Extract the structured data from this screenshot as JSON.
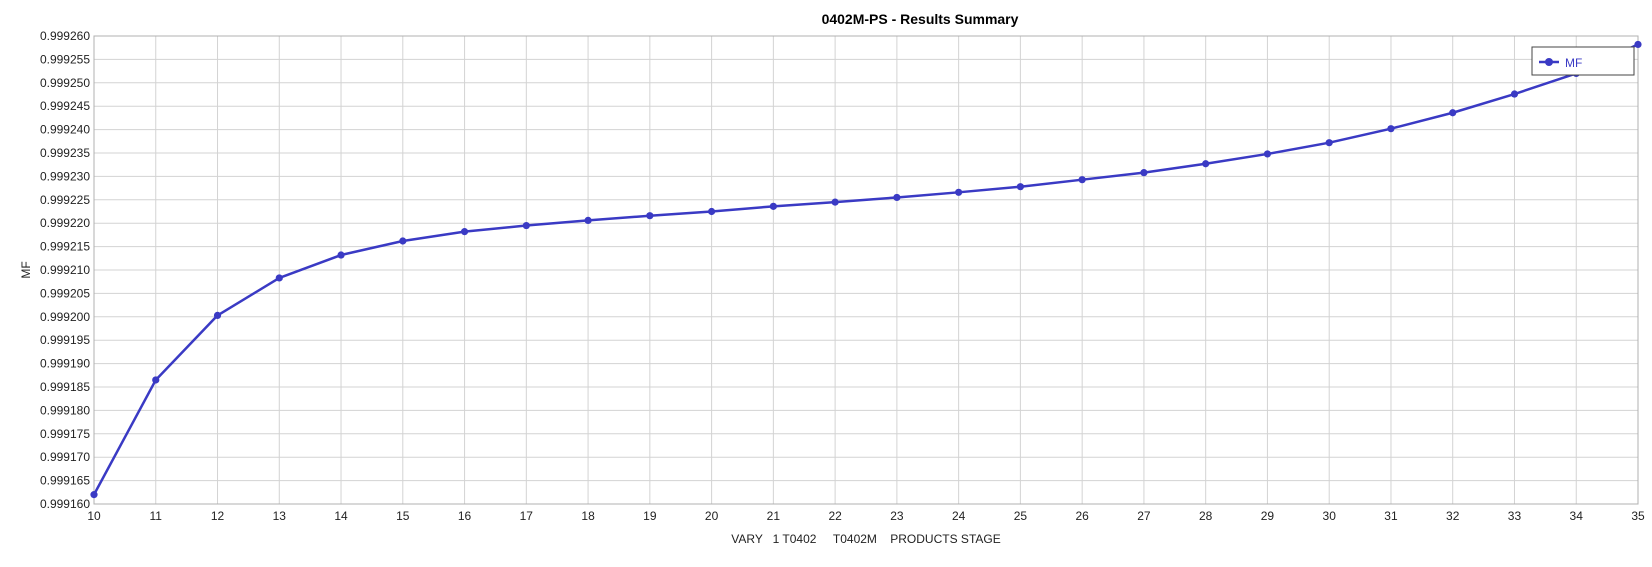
{
  "chart_data": {
    "type": "line",
    "title": "0402M-PS - Results Summary",
    "xlabel": "VARY   1 T0402     T0402M    PRODUCTS STAGE",
    "ylabel": "MF",
    "xlim": [
      10,
      35
    ],
    "ylim": [
      0.99916,
      0.99926
    ],
    "x_ticks": [
      "10",
      "11",
      "12",
      "13",
      "14",
      "15",
      "16",
      "17",
      "18",
      "19",
      "20",
      "21",
      "22",
      "23",
      "24",
      "25",
      "26",
      "27",
      "28",
      "29",
      "30",
      "31",
      "32",
      "33",
      "34",
      "35"
    ],
    "y_ticks": [
      "0.999160",
      "0.999165",
      "0.999170",
      "0.999175",
      "0.999180",
      "0.999185",
      "0.999190",
      "0.999195",
      "0.999200",
      "0.999205",
      "0.999210",
      "0.999215",
      "0.999220",
      "0.999225",
      "0.999230",
      "0.999235",
      "0.999240",
      "0.999245",
      "0.999250",
      "0.999255",
      "0.999260"
    ],
    "grid": true,
    "legend_position": "top-right",
    "series": [
      {
        "name": "MF",
        "color": "#3a3ac4",
        "x": [
          10,
          11,
          12,
          13,
          14,
          15,
          16,
          17,
          18,
          19,
          20,
          21,
          22,
          23,
          24,
          25,
          26,
          27,
          28,
          29,
          30,
          31,
          32,
          33,
          34,
          35
        ],
        "y": [
          0.999162,
          0.9991865,
          0.9992003,
          0.9992083,
          0.9992132,
          0.9992162,
          0.9992182,
          0.9992195,
          0.9992206,
          0.9992216,
          0.9992225,
          0.9992236,
          0.9992245,
          0.9992255,
          0.9992266,
          0.9992278,
          0.9992293,
          0.9992308,
          0.9992327,
          0.9992348,
          0.9992372,
          0.9992402,
          0.9992436,
          0.9992476,
          0.999252,
          0.9992582
        ]
      }
    ]
  }
}
